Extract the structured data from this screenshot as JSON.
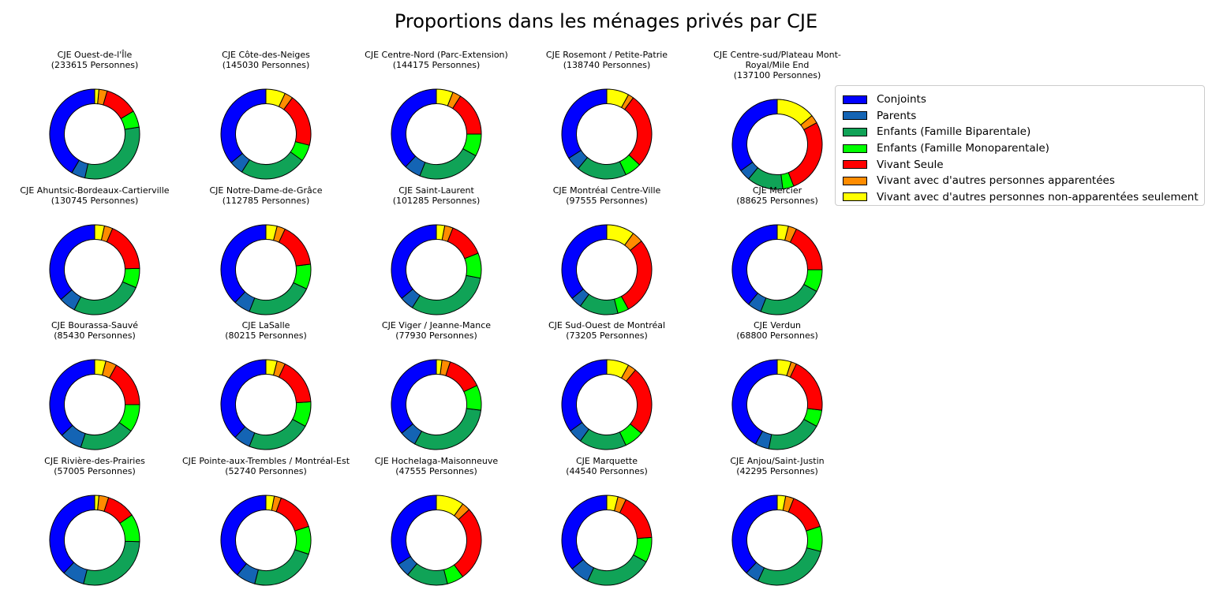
{
  "title": "Proportions dans les ménages privés par CJE",
  "legend": {
    "position": "upper right",
    "items": [
      {
        "key": "conjoints",
        "label": "Conjoints",
        "color": "#0000FF"
      },
      {
        "key": "parents",
        "label": "Parents",
        "color": "#1464B4"
      },
      {
        "key": "enfants-biparentale",
        "label": "Enfants (Famille Biparentale)",
        "color": "#10A357"
      },
      {
        "key": "enfants-monoparentale",
        "label": "Enfants (Famille Monoparentale)",
        "color": "#00FF00"
      },
      {
        "key": "vivant-seule",
        "label": "Vivant Seule",
        "color": "#FF0000"
      },
      {
        "key": "vivant-autres-apparentees",
        "label": "Vivant avec d'autres personnes apparentées",
        "color": "#FF8C00"
      },
      {
        "key": "vivant-autres-non-apparentees",
        "label": "Vivant avec d'autres personnes non-apparentées seulement",
        "color": "#FFFF00"
      }
    ]
  },
  "chart_data": {
    "type": "pie",
    "variant": "donut-small-multiples",
    "title": "Proportions dans les ménages privés par CJE",
    "start_angle_deg": 90,
    "direction": "counterclockwise",
    "grid": {
      "rows": 4,
      "cols": 5
    },
    "categories": [
      "Conjoints",
      "Parents",
      "Enfants (Famille Biparentale)",
      "Enfants (Famille Monoparentale)",
      "Vivant Seule",
      "Vivant avec d'autres personnes apparentées",
      "Vivant avec d'autres personnes non-apparentées seulement"
    ],
    "colors": [
      "#0000FF",
      "#1464B4",
      "#10A357",
      "#00FF00",
      "#FF0000",
      "#FF8C00",
      "#FFFF00"
    ],
    "units": "percent (estimated from wedge angles)",
    "donuts": [
      {
        "name": "CJE Ouest-de-l'Île",
        "population": 233615,
        "population_label": "(233615 Personnes)",
        "values": [
          41.5,
          5,
          31,
          6,
          12,
          3,
          1.5
        ]
      },
      {
        "name": "CJE Côte-des-Neiges",
        "population": 145030,
        "population_label": "(145030 Personnes)",
        "values": [
          36,
          5,
          24,
          6,
          19,
          3,
          7
        ]
      },
      {
        "name": "CJE Centre-Nord (Parc-Extension)",
        "population": 144175,
        "population_label": "(144175 Personnes)",
        "values": [
          38,
          6,
          23,
          8,
          16,
          3,
          6
        ]
      },
      {
        "name": "CJE Rosemont / Petite-Patrie",
        "population": 138740,
        "population_label": "(138740 Personnes)",
        "values": [
          34,
          5,
          18,
          6,
          27,
          2,
          8
        ]
      },
      {
        "name": "CJE Centre-sud/Plateau Mont-Royal/Mile End",
        "population": 137100,
        "population_label": "(137100 Personnes)",
        "values": [
          35,
          4,
          13,
          4,
          27,
          3,
          14
        ]
      },
      {
        "name": "CJE Ahuntsic-Bordeaux-Cartierville",
        "population": 130745,
        "population_label": "(130745 Personnes)",
        "values": [
          36.5,
          6,
          26,
          7,
          18,
          3,
          3.5
        ]
      },
      {
        "name": "CJE Notre-Dame-de-Grâce",
        "population": 112785,
        "population_label": "(112785 Personnes)",
        "values": [
          38,
          6,
          24,
          9,
          16,
          3,
          4
        ]
      },
      {
        "name": "CJE Saint-Laurent",
        "population": 101285,
        "population_label": "(101285 Personnes)",
        "values": [
          36,
          5,
          31,
          9,
          13,
          3,
          3
        ]
      },
      {
        "name": "CJE Montréal Centre-Ville",
        "population": 97555,
        "population_label": "(97555 Personnes)",
        "values": [
          36,
          4,
          14,
          4,
          28,
          4,
          10
        ]
      },
      {
        "name": "CJE Mercier",
        "population": 88625,
        "population_label": "(88625 Personnes)",
        "values": [
          39,
          5,
          23,
          8,
          18,
          3,
          4
        ]
      },
      {
        "name": "CJE Bourassa-Sauvé",
        "population": 85430,
        "population_label": "(85430 Personnes)",
        "values": [
          37,
          8,
          20,
          10,
          17,
          4,
          4
        ]
      },
      {
        "name": "CJE LaSalle",
        "population": 80215,
        "population_label": "(80215 Personnes)",
        "values": [
          38,
          6,
          23,
          9,
          17,
          3,
          4
        ]
      },
      {
        "name": "CJE Viger / Jeanne-Mance",
        "population": 77930,
        "population_label": "(77930 Personnes)",
        "values": [
          36,
          6,
          31,
          9,
          13,
          3,
          2
        ]
      },
      {
        "name": "CJE Sud-Ouest de Montréal",
        "population": 73205,
        "population_label": "(73205 Personnes)",
        "values": [
          35,
          5,
          17,
          7,
          25,
          3,
          8
        ]
      },
      {
        "name": "CJE Verdun",
        "population": 68800,
        "population_label": "(68800 Personnes)",
        "values": [
          42,
          5,
          20,
          6,
          20,
          2,
          5
        ]
      },
      {
        "name": "CJE Rivière-des-Prairies",
        "population": 57005,
        "population_label": "(57005 Personnes)",
        "values": [
          38,
          8,
          28.5,
          10,
          10.5,
          3.5,
          1.5
        ]
      },
      {
        "name": "CJE Pointe-aux-Trembles / Montréal-Est",
        "population": 52740,
        "population_label": "(52740 Personnes)",
        "values": [
          39,
          7,
          24,
          10,
          14.5,
          2.5,
          3
        ]
      },
      {
        "name": "CJE Hochelaga-Maisonneuve",
        "population": 47555,
        "population_label": "(47555 Personnes)",
        "values": [
          34,
          5,
          15,
          6,
          27,
          3,
          10
        ]
      },
      {
        "name": "CJE Marquette",
        "population": 44540,
        "population_label": "(44540 Personnes)",
        "values": [
          36,
          7,
          24,
          9,
          17,
          3,
          4
        ]
      },
      {
        "name": "CJE Anjou/Saint-Justin",
        "population": 42295,
        "population_label": "(42295 Personnes)",
        "values": [
          38,
          5,
          28,
          9,
          14,
          3,
          3
        ]
      }
    ]
  }
}
